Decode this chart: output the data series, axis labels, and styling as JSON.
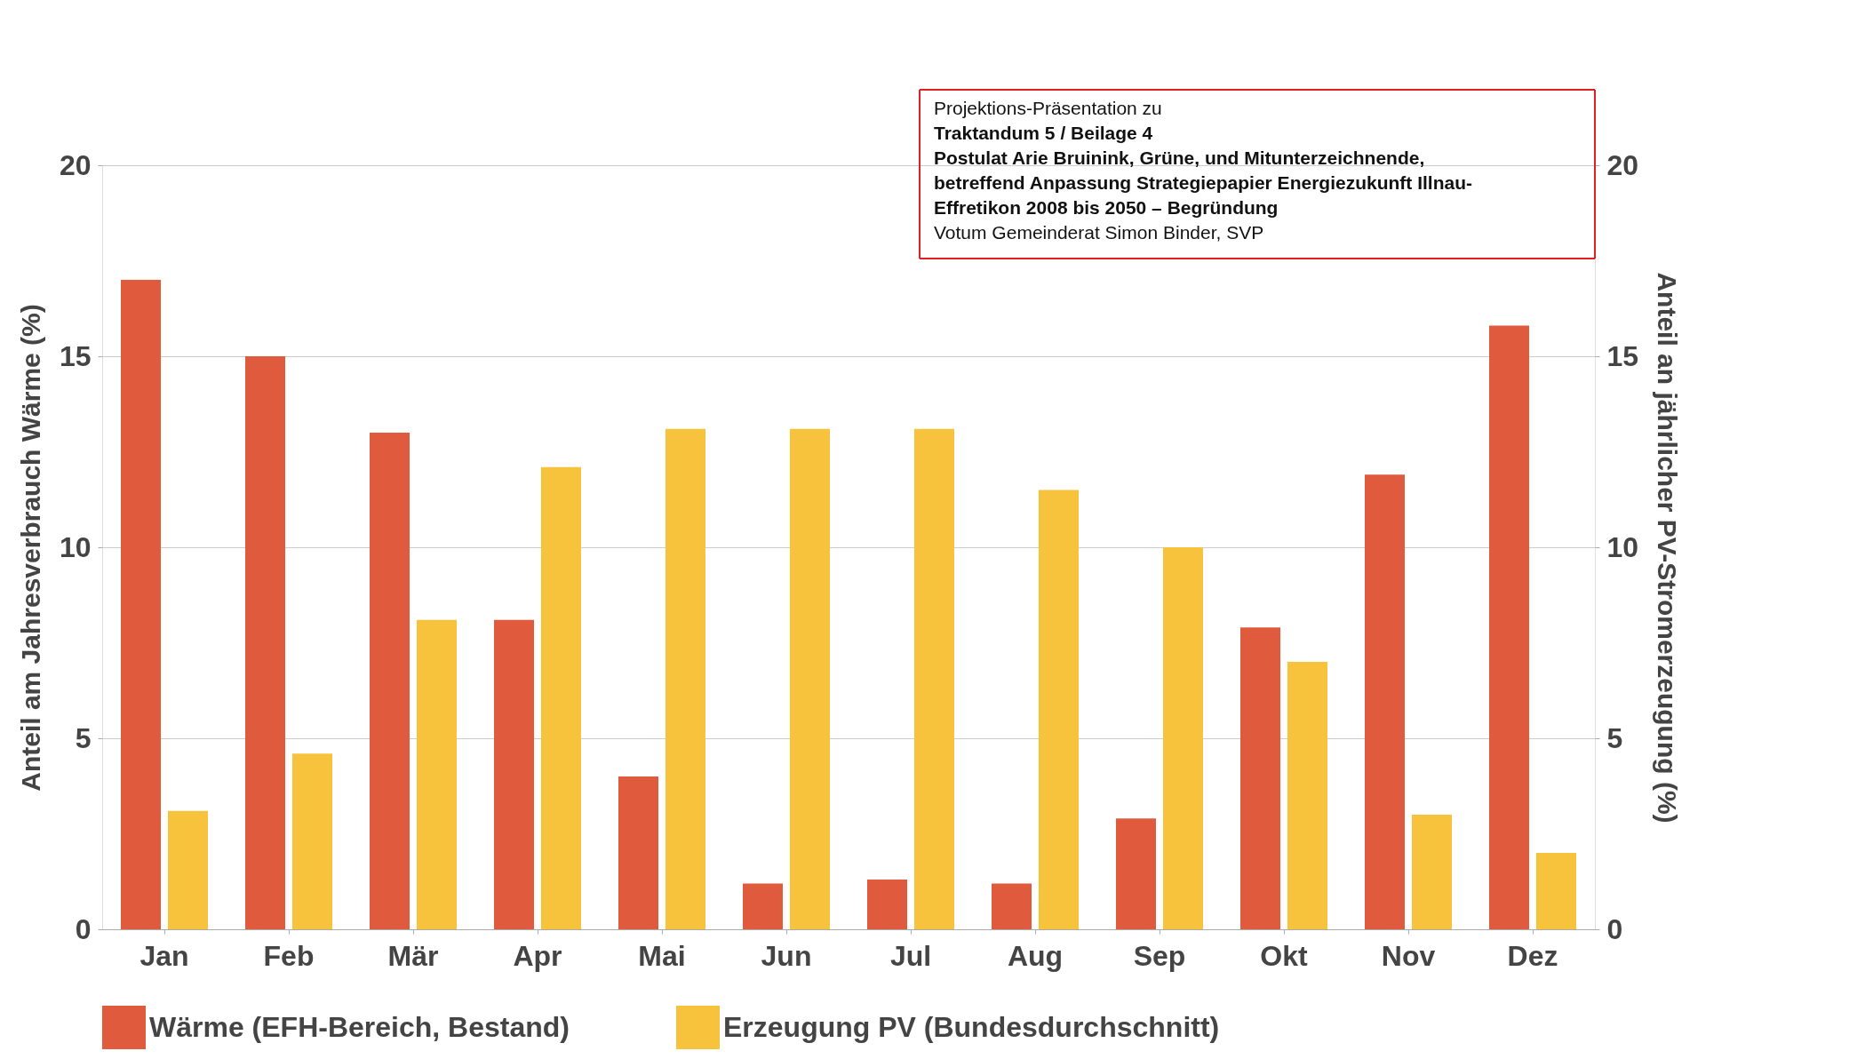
{
  "chart_data": {
    "type": "bar",
    "categories": [
      "Jan",
      "Feb",
      "Mär",
      "Apr",
      "Mai",
      "Jun",
      "Jul",
      "Aug",
      "Sep",
      "Okt",
      "Nov",
      "Dez"
    ],
    "ylabel": "Anteil am Jahresverbrauch Wärme (%)",
    "y2label": "Anteil an jährlicher PV-Stromerzeugung (%)",
    "series": [
      {
        "name": "Wärme (EFH-Bereich, Bestand)",
        "color": "#e05a3e",
        "values": [
          17,
          15,
          13,
          8.1,
          4,
          1.2,
          1.3,
          1.2,
          2.9,
          7.9,
          11.9,
          15.8
        ]
      },
      {
        "name": "Erzeugung PV (Bundesdurchschnitt)",
        "color": "#f7c23c",
        "axis": "y2",
        "values": [
          3.1,
          4.6,
          8.1,
          12.1,
          13.1,
          13.1,
          13.1,
          11.5,
          10,
          7,
          3,
          2
        ]
      }
    ],
    "ylim": [
      0,
      20
    ],
    "yticks": [
      0,
      5,
      10,
      15,
      20
    ],
    "y2lim": [
      0,
      20
    ],
    "y2ticks": [
      0,
      5,
      10,
      15,
      20
    ],
    "grid": "y",
    "legend": "bottom",
    "annotations": [
      "Projektions-Präsentation zu",
      "Traktandum 5 / Beilage 4",
      "Postulat Arie Bruinink, Grüne, und Mitunterzeichnende,",
      "betreffend Anpassung Strategiepapier Energiezukunft Illnau-",
      "Effretikon 2008 bis 2050 – Begründung",
      "Votum Gemeinderat Simon Binder, SVP"
    ]
  }
}
